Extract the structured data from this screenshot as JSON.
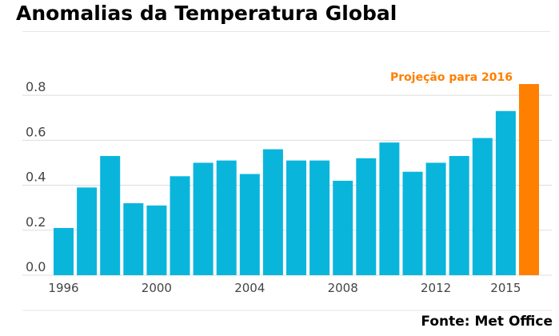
{
  "title": "Anomalias da Temperatura Global",
  "source": "Fonte: Met Office",
  "colors": {
    "bar": "#0ab5dc",
    "projection": "#ff7f00",
    "grid": "#dddddd",
    "axis_text": "#444444"
  },
  "chart_data": {
    "type": "bar",
    "x": [
      1996,
      1997,
      1998,
      1999,
      2000,
      2001,
      2002,
      2003,
      2004,
      2005,
      2006,
      2007,
      2008,
      2009,
      2010,
      2011,
      2012,
      2013,
      2014,
      2015,
      2016
    ],
    "values": [
      0.21,
      0.39,
      0.53,
      0.32,
      0.31,
      0.44,
      0.5,
      0.51,
      0.45,
      0.56,
      0.51,
      0.51,
      0.42,
      0.52,
      0.59,
      0.46,
      0.5,
      0.53,
      0.61,
      0.73,
      0.85
    ],
    "xticks": [
      "1996",
      "2000",
      "2004",
      "2008",
      "2012",
      "2015"
    ],
    "yticks": [
      "0.0",
      "0.2",
      "0.4",
      "0.6",
      "0.8"
    ],
    "ylim": [
      0,
      0.9
    ],
    "grid": true,
    "highlight": {
      "x": 2016,
      "label": "Projeção para 2016"
    }
  }
}
